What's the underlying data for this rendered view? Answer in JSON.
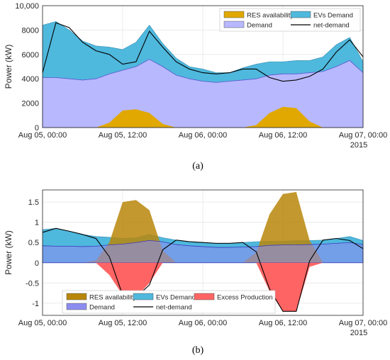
{
  "captions": [
    "(a)",
    "(b)"
  ],
  "colors": {
    "res": "#E0A800",
    "res_b": "#B8860B",
    "evs": "#4FB8DD",
    "demand": "#B8B8FF",
    "demand_b": "#8C8CF0",
    "excess": "#FF6464",
    "netdemand": "#000000"
  },
  "chart_data": [
    {
      "id": "a",
      "type": "area",
      "title": "",
      "xlabel": "",
      "ylabel": "Power (kW)",
      "xlim": [
        0,
        48
      ],
      "ylim": [
        0,
        10000
      ],
      "grid": true,
      "legend_position": "top-right",
      "x_ticks": [
        {
          "x": 0,
          "label": "Aug 05, 00:00"
        },
        {
          "x": 12,
          "label": "Aug 05, 12:00"
        },
        {
          "x": 24,
          "label": "Aug 06, 00:00"
        },
        {
          "x": 36,
          "label": "Aug 06, 12:00"
        },
        {
          "x": 48,
          "label": "Aug 07, 00:00"
        }
      ],
      "x_year": "2015",
      "y_ticks": [
        {
          "y": 0,
          "label": "0"
        },
        {
          "y": 2000,
          "label": "2000"
        },
        {
          "y": 4000,
          "label": "4000"
        },
        {
          "y": 6000,
          "label": "6000"
        },
        {
          "y": 8000,
          "label": "8000"
        },
        {
          "y": 10000,
          "label": "10,000"
        }
      ],
      "x": [
        0,
        2,
        4,
        6,
        8,
        10,
        12,
        14,
        16,
        18,
        20,
        22,
        24,
        26,
        28,
        30,
        32,
        34,
        36,
        38,
        40,
        42,
        44,
        46,
        48
      ],
      "series": [
        {
          "name": "RES availability",
          "key": "res",
          "values": [
            0,
            0,
            0,
            0,
            0,
            400,
            1400,
            1500,
            1200,
            300,
            0,
            0,
            0,
            0,
            0,
            0,
            200,
            1200,
            1700,
            1600,
            500,
            0,
            0,
            0,
            0
          ]
        },
        {
          "name": "Demand",
          "key": "demand",
          "values": [
            4100,
            4100,
            4000,
            3900,
            4000,
            4400,
            4700,
            5000,
            5600,
            5000,
            4300,
            4000,
            3800,
            3700,
            3800,
            3900,
            4000,
            4300,
            4400,
            4400,
            4500,
            4600,
            5000,
            5500,
            4500
          ]
        },
        {
          "name": "EVs Demand",
          "key": "evs",
          "values": [
            8400,
            8700,
            8000,
            7100,
            6700,
            6600,
            6400,
            7000,
            8400,
            6900,
            5700,
            5000,
            4800,
            4500,
            4500,
            4900,
            5200,
            5400,
            5400,
            5500,
            5500,
            5800,
            6800,
            7400,
            5400
          ]
        },
        {
          "name": "net-demand",
          "key": "netdemand",
          "values": [
            4500,
            8600,
            8200,
            7000,
            6300,
            6000,
            5200,
            5400,
            7900,
            6600,
            5400,
            4800,
            4500,
            4400,
            4500,
            4800,
            4800,
            4100,
            3800,
            3900,
            4200,
            4800,
            6200,
            7200,
            5800
          ]
        }
      ]
    },
    {
      "id": "b",
      "type": "area",
      "title": "",
      "xlabel": "",
      "ylabel": "Power (kW)",
      "xlim": [
        0,
        48
      ],
      "ylim": [
        -1.3,
        1.8
      ],
      "grid": true,
      "legend_position": "bottom-center",
      "x_ticks": [
        {
          "x": 0,
          "label": "Aug 05, 00:00"
        },
        {
          "x": 12,
          "label": "Aug 05, 12:00"
        },
        {
          "x": 24,
          "label": "Aug 06, 00:00"
        },
        {
          "x": 36,
          "label": "Aug 06, 12:00"
        },
        {
          "x": 48,
          "label": "Aug 07, 00:00"
        }
      ],
      "x_year": "2015",
      "y_ticks": [
        {
          "y": -1,
          "label": "-1"
        },
        {
          "y": -0.5,
          "label": "-0.5"
        },
        {
          "y": 0,
          "label": "0"
        },
        {
          "y": 0.5,
          "label": "0.5"
        },
        {
          "y": 1,
          "label": "1"
        },
        {
          "y": 1.5,
          "label": "1.5"
        }
      ],
      "x": [
        0,
        2,
        4,
        6,
        8,
        10,
        12,
        14,
        16,
        18,
        20,
        22,
        24,
        26,
        28,
        30,
        32,
        34,
        36,
        38,
        40,
        42,
        44,
        46,
        48
      ],
      "series": [
        {
          "name": "RES availability",
          "key": "res_b",
          "values": [
            0,
            0,
            0,
            0,
            0.05,
            0.5,
            1.5,
            1.55,
            1.3,
            0.3,
            0,
            0,
            0,
            0,
            0,
            0,
            0.25,
            1.2,
            1.7,
            1.75,
            0.55,
            0,
            0,
            0,
            0
          ]
        },
        {
          "name": "Demand",
          "key": "demand_b",
          "values": [
            0.42,
            0.41,
            0.41,
            0.4,
            0.41,
            0.44,
            0.46,
            0.5,
            0.55,
            0.52,
            0.45,
            0.42,
            0.4,
            0.38,
            0.38,
            0.39,
            0.4,
            0.43,
            0.44,
            0.44,
            0.45,
            0.46,
            0.48,
            0.5,
            0.45
          ]
        },
        {
          "name": "EVs Demand",
          "key": "evs_b",
          "values": [
            0.82,
            0.85,
            0.78,
            0.7,
            0.65,
            0.63,
            0.6,
            0.62,
            0.7,
            0.62,
            0.56,
            0.52,
            0.5,
            0.48,
            0.48,
            0.5,
            0.52,
            0.53,
            0.53,
            0.55,
            0.55,
            0.56,
            0.6,
            0.65,
            0.55
          ]
        },
        {
          "name": "Excess Production",
          "key": "excess",
          "values": [
            0,
            0,
            0,
            0,
            0,
            -0.3,
            -0.8,
            -0.85,
            -0.5,
            0,
            0,
            0,
            0,
            0,
            0,
            0,
            0,
            -0.7,
            -1.2,
            -1.2,
            -0.1,
            0,
            0,
            0,
            0
          ]
        },
        {
          "name": "net-demand",
          "key": "netdemand_b",
          "values": [
            0.75,
            0.85,
            0.78,
            0.7,
            0.6,
            0.15,
            -0.8,
            -0.85,
            -0.55,
            0.32,
            0.56,
            0.52,
            0.5,
            0.48,
            0.48,
            0.5,
            0.27,
            -0.65,
            -1.2,
            -1.2,
            0.05,
            0.56,
            0.6,
            0.55,
            0.35
          ]
        }
      ]
    }
  ]
}
